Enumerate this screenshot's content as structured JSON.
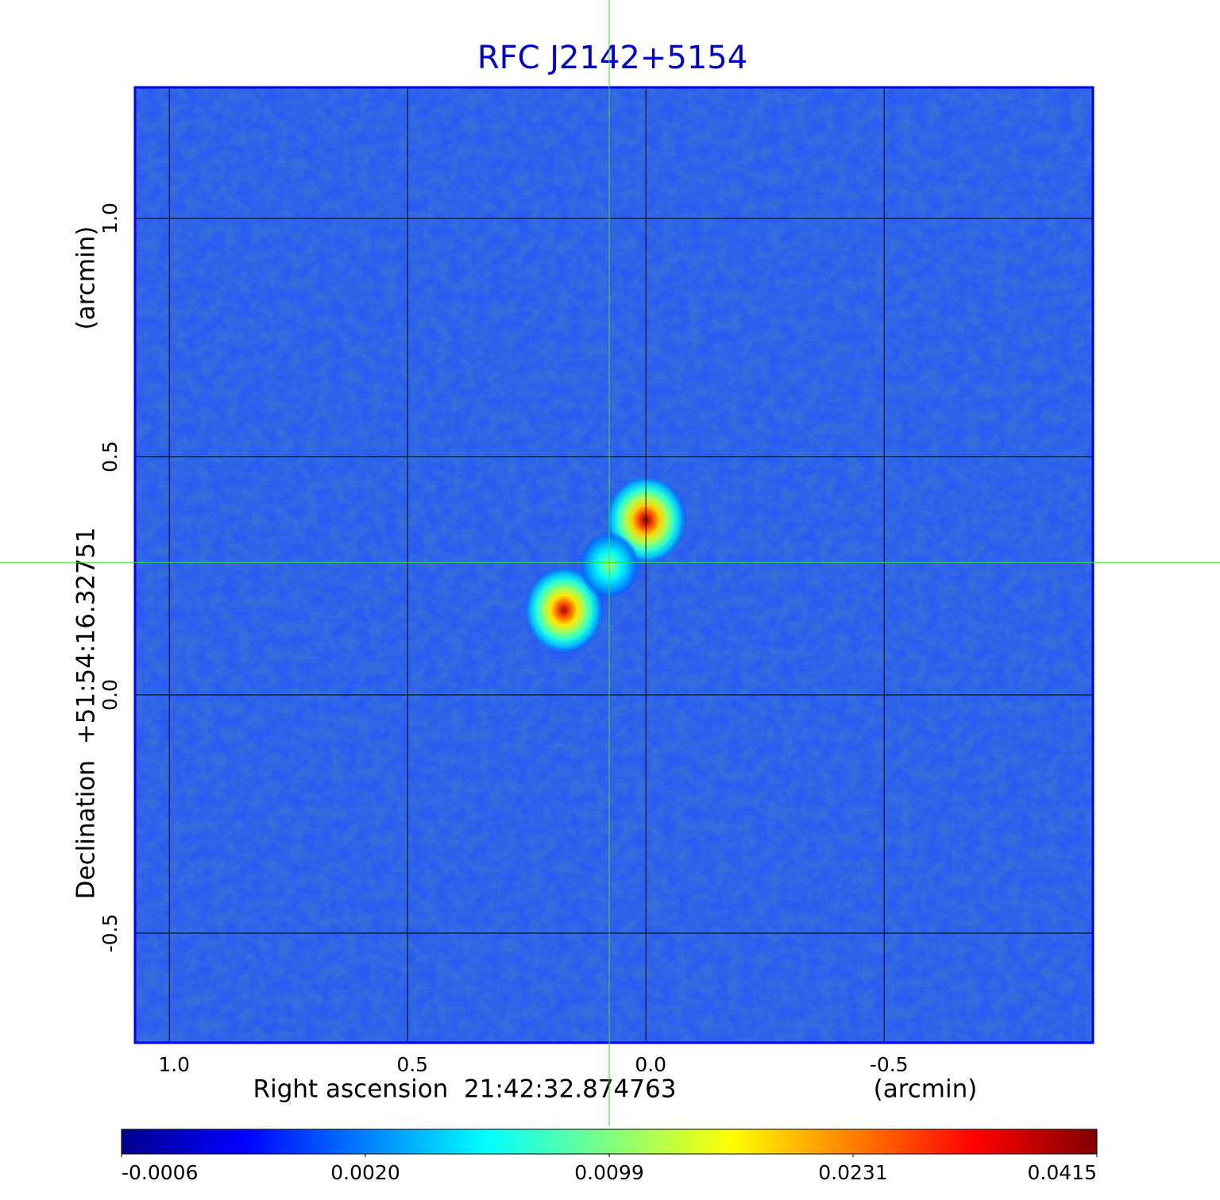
{
  "chart_data": {
    "type": "image",
    "title": "RFC J2142+5154",
    "x_label": "Right ascension  21:42:32.874763",
    "x_unit": "(arcmin)",
    "y_label": "Declination  +51:54:16.32751",
    "y_unit": "(arcmin)",
    "xlim": [
      1.072,
      -0.938
    ],
    "ylim": [
      -0.73,
      1.275
    ],
    "xticks": [
      {
        "value": 1,
        "label": "1.0"
      },
      {
        "value": 0.5,
        "label": "0.5"
      },
      {
        "value": 0,
        "label": "0.0"
      },
      {
        "value": -0.5,
        "label": "-0.5"
      }
    ],
    "yticks": [
      {
        "value": 1,
        "label": "1.0"
      },
      {
        "value": 0.5,
        "label": "0.5"
      },
      {
        "value": 0,
        "label": "0.0"
      },
      {
        "value": -0.5,
        "label": "-0.5"
      }
    ],
    "grid": true,
    "frame_color": "#0000ee",
    "crosshair": {
      "x": 0.077,
      "y": 0.278,
      "color": "#33dd33"
    },
    "sources": [
      {
        "x": 0.0,
        "y": 0.367,
        "peak": 0.0415
      },
      {
        "x": 0.172,
        "y": 0.178,
        "peak": 0.039
      },
      {
        "x": 0.077,
        "y": 0.272,
        "peak": 0.012
      }
    ],
    "colorbar": {
      "colormap": "jet",
      "ticks": [
        -0.0006,
        {
          "value": 0.002,
          "label": "0.0020"
        },
        0.0099,
        0.0231,
        0.0415
      ]
    }
  }
}
